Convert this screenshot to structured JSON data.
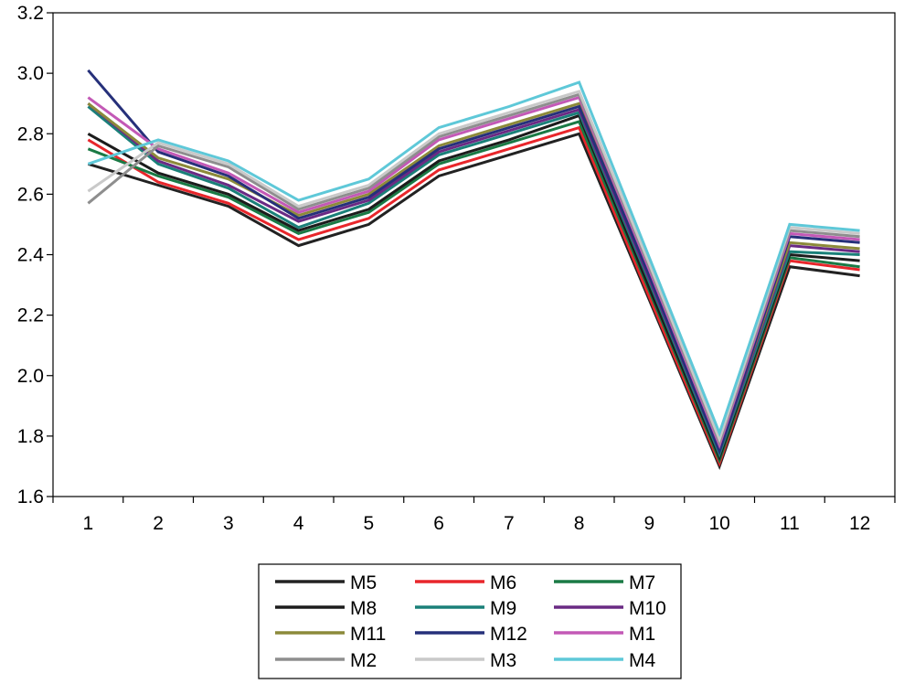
{
  "chart_data": {
    "type": "line",
    "title": "",
    "xlabel": "",
    "ylabel": "",
    "categories": [
      "1",
      "2",
      "3",
      "4",
      "5",
      "6",
      "7",
      "8",
      "9",
      "10",
      "11",
      "12"
    ],
    "ylim": [
      1.6,
      3.2
    ],
    "yticks": [
      1.6,
      1.8,
      2.0,
      2.2,
      2.4,
      2.6,
      2.8,
      3.0,
      3.2
    ],
    "ytick_labels": [
      "1.6",
      "1.8",
      "2.0",
      "2.2",
      "2.4",
      "2.6",
      "2.8",
      "3.0",
      "3.2"
    ],
    "grid": false,
    "legend_position": "bottom-center",
    "series": [
      {
        "name": "M5",
        "color": "#222222",
        "values": [
          2.7,
          2.63,
          2.56,
          2.43,
          2.5,
          2.66,
          2.73,
          2.8,
          2.25,
          1.7,
          2.36,
          2.33
        ]
      },
      {
        "name": "M6",
        "color": "#e8262b",
        "values": [
          2.78,
          2.64,
          2.57,
          2.45,
          2.52,
          2.68,
          2.75,
          2.82,
          2.26,
          1.71,
          2.38,
          2.35
        ]
      },
      {
        "name": "M7",
        "color": "#1a7a45",
        "values": [
          2.75,
          2.66,
          2.59,
          2.47,
          2.54,
          2.7,
          2.77,
          2.84,
          2.28,
          1.72,
          2.39,
          2.36
        ]
      },
      {
        "name": "M8",
        "color": "#1c1c1c",
        "values": [
          2.8,
          2.67,
          2.6,
          2.48,
          2.55,
          2.71,
          2.78,
          2.86,
          2.29,
          1.73,
          2.4,
          2.38
        ]
      },
      {
        "name": "M9",
        "color": "#1a8079",
        "values": [
          2.89,
          2.7,
          2.62,
          2.49,
          2.57,
          2.73,
          2.8,
          2.87,
          2.31,
          1.74,
          2.41,
          2.4
        ]
      },
      {
        "name": "M10",
        "color": "#6a2a84",
        "values": [
          2.9,
          2.71,
          2.63,
          2.51,
          2.58,
          2.74,
          2.81,
          2.88,
          2.32,
          1.75,
          2.43,
          2.41
        ]
      },
      {
        "name": "M11",
        "color": "#8c8a3a",
        "values": [
          2.9,
          2.72,
          2.65,
          2.53,
          2.6,
          2.76,
          2.83,
          2.9,
          2.34,
          1.76,
          2.44,
          2.42
        ]
      },
      {
        "name": "M12",
        "color": "#26307a",
        "values": [
          3.01,
          2.74,
          2.66,
          2.52,
          2.59,
          2.75,
          2.82,
          2.89,
          2.33,
          1.75,
          2.46,
          2.44
        ]
      },
      {
        "name": "M1",
        "color": "#c359b6",
        "values": [
          2.92,
          2.75,
          2.67,
          2.54,
          2.61,
          2.78,
          2.85,
          2.92,
          2.35,
          1.77,
          2.47,
          2.45
        ]
      },
      {
        "name": "M2",
        "color": "#8e8e8e",
        "values": [
          2.57,
          2.76,
          2.69,
          2.55,
          2.62,
          2.79,
          2.86,
          2.93,
          2.36,
          1.78,
          2.48,
          2.46
        ]
      },
      {
        "name": "M3",
        "color": "#c9c9c9",
        "values": [
          2.61,
          2.77,
          2.7,
          2.56,
          2.63,
          2.8,
          2.87,
          2.94,
          2.37,
          1.79,
          2.49,
          2.47
        ]
      },
      {
        "name": "M4",
        "color": "#5ec8d8",
        "values": [
          2.7,
          2.78,
          2.71,
          2.58,
          2.65,
          2.82,
          2.89,
          2.97,
          2.39,
          1.81,
          2.5,
          2.48
        ]
      }
    ]
  }
}
